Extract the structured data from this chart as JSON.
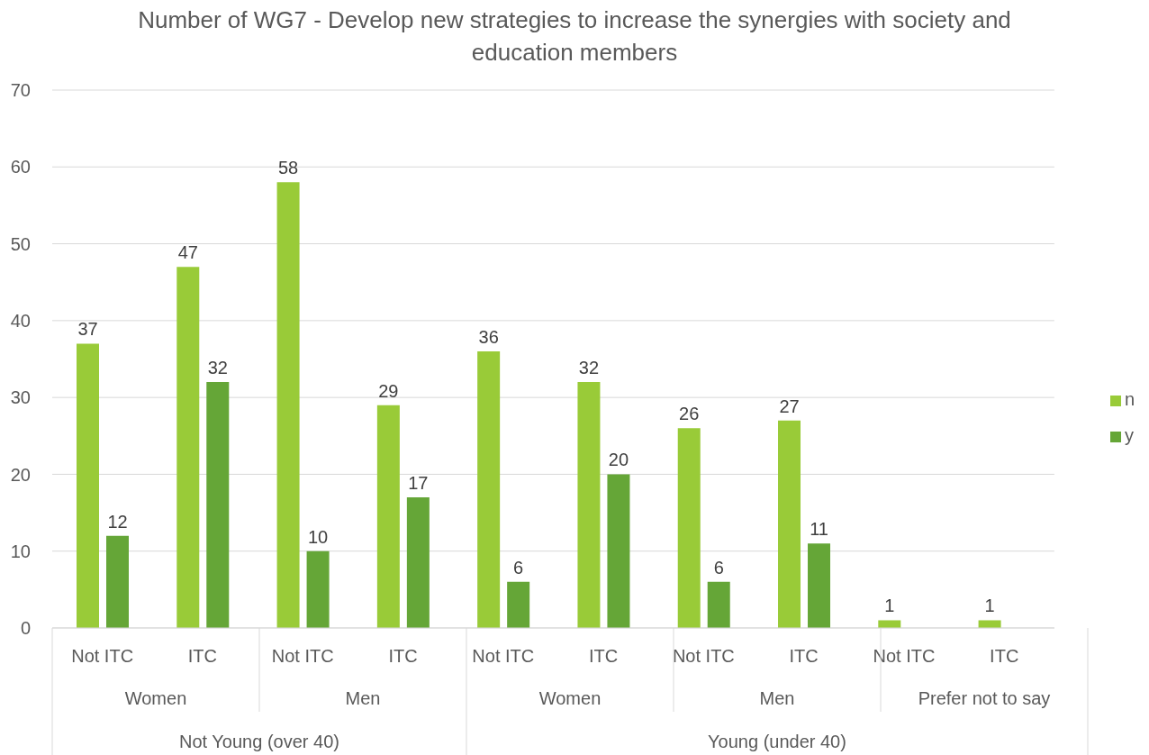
{
  "chart_data": {
    "type": "bar",
    "title": "Number of WG7 - Develop new strategies to increase the synergies with society and education members",
    "categories": [
      "Not ITC",
      "ITC",
      "Not ITC",
      "ITC",
      "Not ITC",
      "ITC",
      "Not ITC",
      "ITC",
      "Not ITC",
      "ITC"
    ],
    "series": [
      {
        "name": "n",
        "color": "#99cb38",
        "values": [
          37,
          47,
          58,
          29,
          36,
          32,
          26,
          27,
          1,
          1
        ]
      },
      {
        "name": "y",
        "color": "#65a637",
        "values": [
          12,
          32,
          10,
          17,
          6,
          20,
          6,
          11,
          null,
          null
        ]
      }
    ],
    "annotations": [
      "Women",
      "Men",
      "Women",
      "Men",
      "Prefer not to say",
      "Not Young (over 40)",
      "Young (under 40)"
    ],
    "ylim": [
      0,
      70
    ],
    "yticks": [
      0,
      10,
      20,
      30,
      40,
      50,
      60,
      70
    ],
    "grid": "y",
    "legend": "right",
    "data_labels": true
  }
}
